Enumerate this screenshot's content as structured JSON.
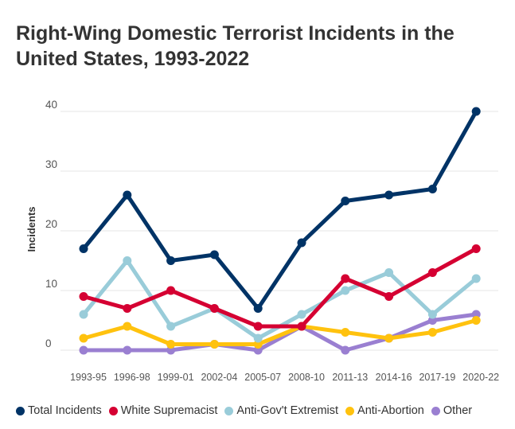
{
  "chart_data": {
    "type": "line",
    "title": "Right-Wing Domestic Terrorist Incidents in the United States, 1993-2022",
    "xlabel": "",
    "ylabel": "Incidents",
    "categories": [
      "1993-95",
      "1996-98",
      "1999-01",
      "2002-04",
      "2005-07",
      "2008-10",
      "2011-13",
      "2014-16",
      "2017-19",
      "2020-22"
    ],
    "ylim": [
      0,
      40
    ],
    "yticks": [
      0,
      10,
      20,
      30,
      40
    ],
    "grid": true,
    "legend": "bottom",
    "series": [
      {
        "name": "Total Incidents",
        "color": "#003366",
        "values": [
          17,
          26,
          15,
          16,
          7,
          18,
          25,
          26,
          27,
          40
        ]
      },
      {
        "name": "White Supremacist",
        "color": "#d50032",
        "values": [
          9,
          7,
          10,
          7,
          4,
          4,
          12,
          9,
          13,
          17
        ]
      },
      {
        "name": "Anti-Gov't Extremist",
        "color": "#99ccd9",
        "values": [
          6,
          15,
          4,
          7,
          2,
          6,
          10,
          13,
          6,
          12
        ]
      },
      {
        "name": "Anti-Abortion",
        "color": "#ffc20e",
        "values": [
          2,
          4,
          1,
          1,
          1,
          4,
          3,
          2,
          3,
          5
        ]
      },
      {
        "name": "Other",
        "color": "#9a7fd1",
        "values": [
          0,
          0,
          0,
          1,
          0,
          4,
          0,
          2,
          5,
          6
        ]
      }
    ]
  }
}
